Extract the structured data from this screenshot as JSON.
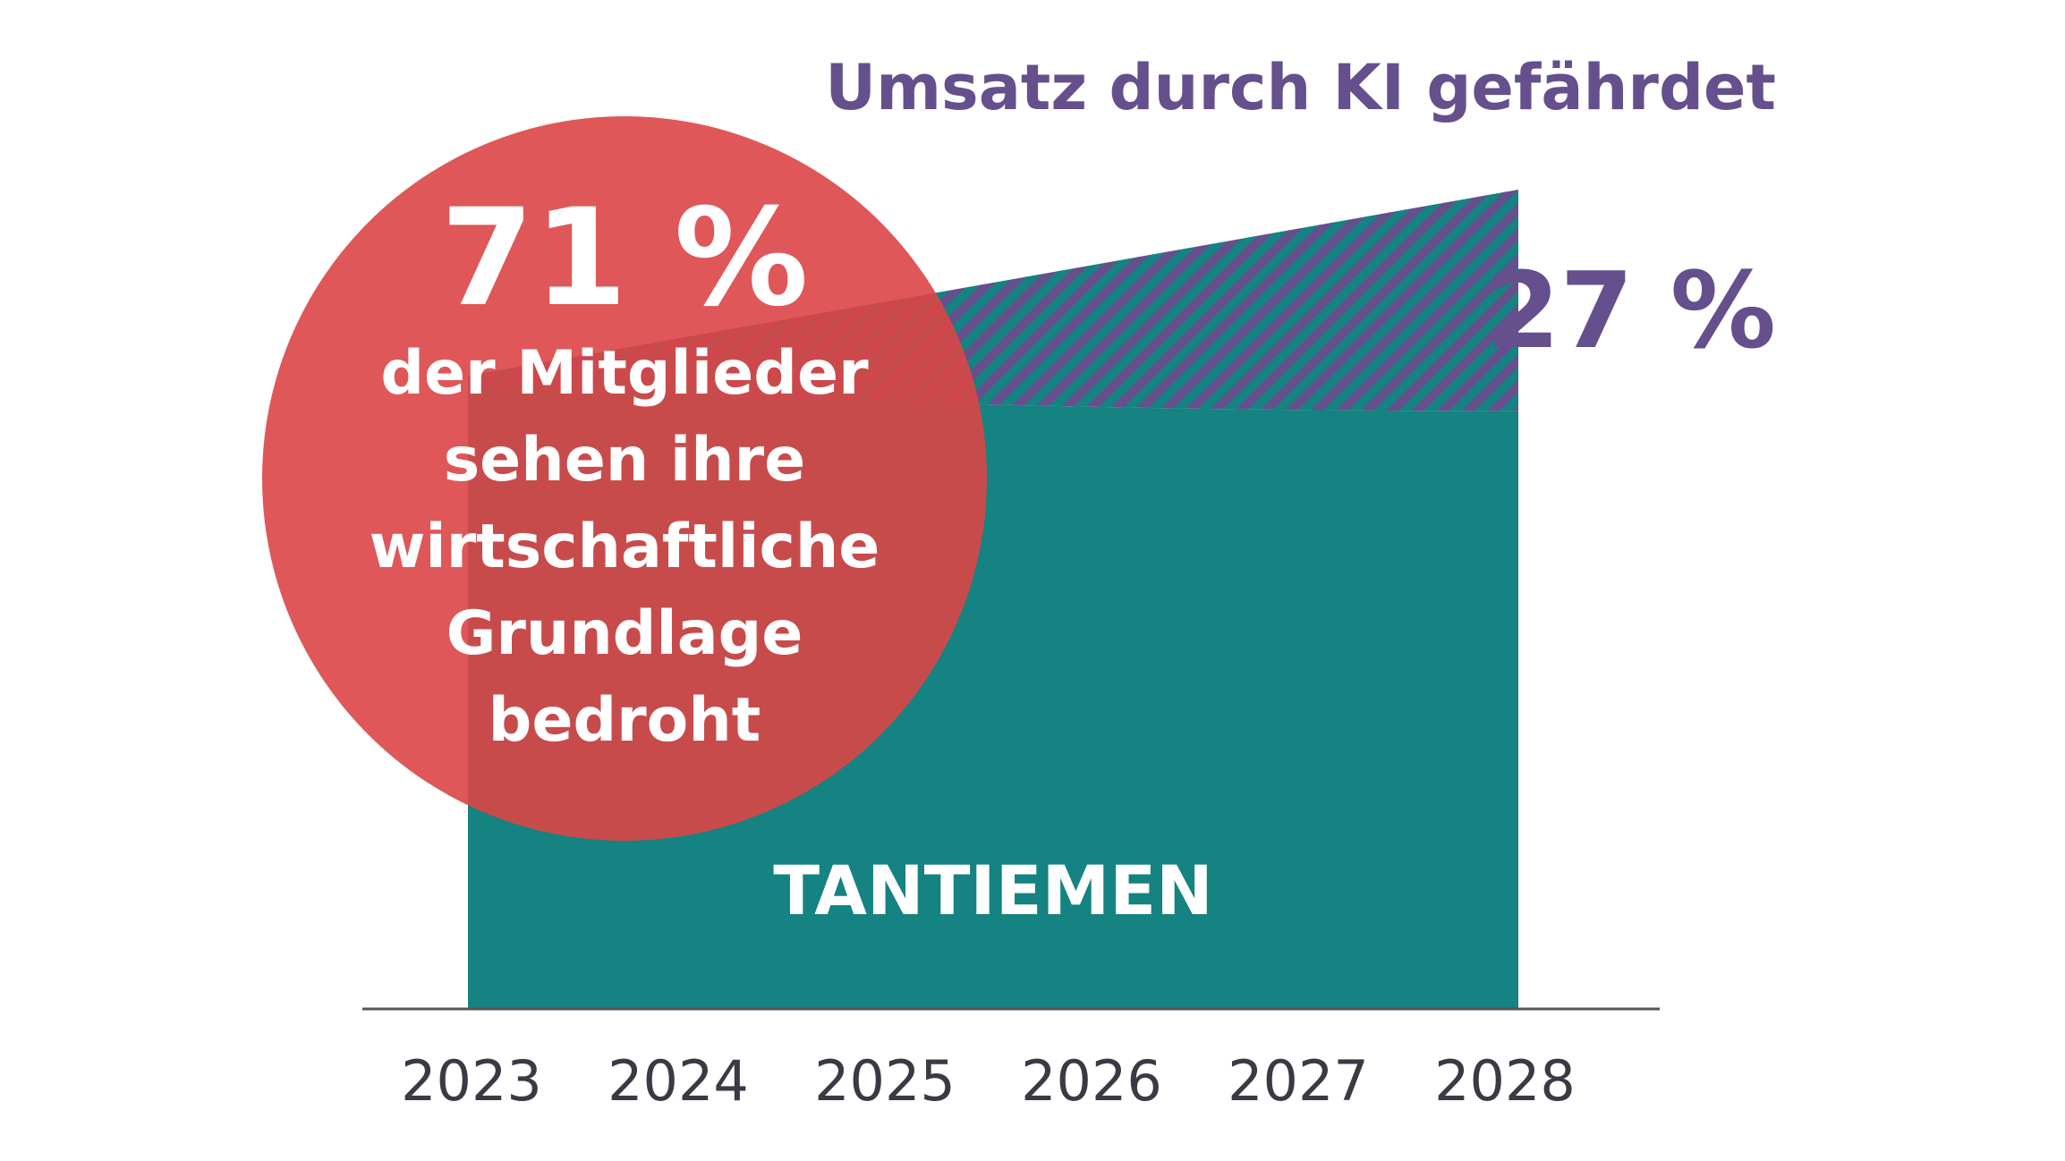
{
  "chart_data": {
    "type": "area",
    "title": "Umsatz durch KI gefährdet",
    "x": [
      "2023",
      "2024",
      "2025",
      "2026",
      "2027",
      "2028"
    ],
    "series": [
      {
        "name": "TANTIEMEN",
        "label": "TANTIEMEN"
      },
      {
        "name": "Umsatz durch KI gefährdet",
        "pattern": "hatched",
        "value_label": "27 %"
      }
    ],
    "share_at_risk_2028": 27,
    "callout": {
      "value": "71 %",
      "lines": [
        "der Mitglieder",
        "sehen ihre",
        "wirtschaftliche",
        "Grundlage",
        "bedroht"
      ]
    },
    "grid": false,
    "legend": "none"
  },
  "colors": {
    "teal": "#148381",
    "purple": "#654F8C",
    "red": "#DC4546",
    "axis": "#555555",
    "tick_text": "#3A3A46"
  }
}
